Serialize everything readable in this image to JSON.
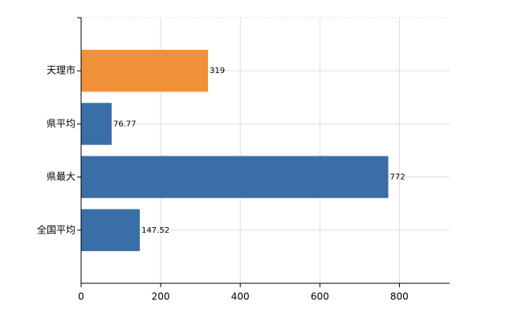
{
  "chart_data": {
    "type": "bar",
    "orientation": "horizontal",
    "categories": [
      "天理市",
      "県平均",
      "県最大",
      "全国平均"
    ],
    "values": [
      319,
      76.77,
      772,
      147.52
    ],
    "colors": [
      "#f0913a",
      "#3a6ea8",
      "#3a6ea8",
      "#3a6ea8"
    ],
    "xlim": [
      0,
      926.4
    ],
    "xticks": [
      0,
      200,
      400,
      600,
      800
    ],
    "grid": true
  }
}
